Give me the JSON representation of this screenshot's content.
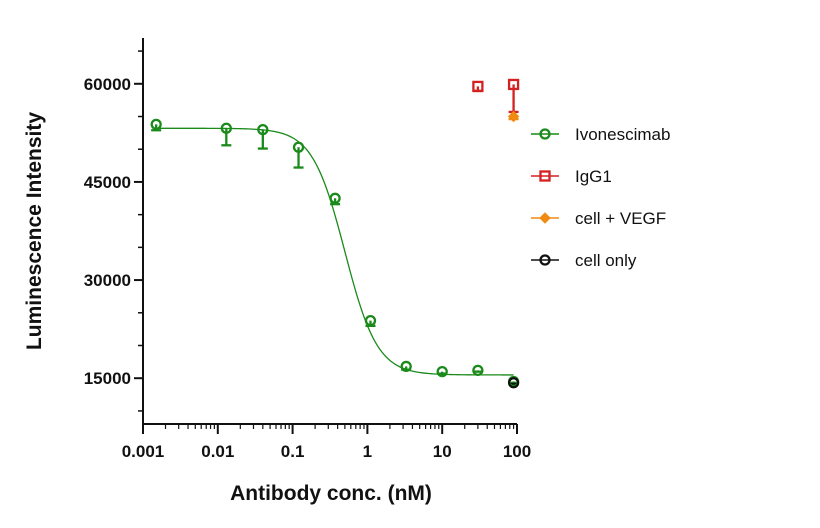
{
  "chart_data": {
    "type": "scatter",
    "title": "",
    "xlabel": "Antibody conc. (nM)",
    "ylabel": "Luminescence Intensity",
    "xscale": "log",
    "xlim": [
      0.001,
      100
    ],
    "ylim": [
      8000,
      67000
    ],
    "x_ticks": [
      0.001,
      0.01,
      0.1,
      1,
      10,
      100
    ],
    "x_tick_labels": [
      "0.001",
      "0.01",
      "0.1",
      "1",
      "10",
      "100"
    ],
    "y_ticks": [
      15000,
      30000,
      45000,
      60000
    ],
    "y_tick_labels": [
      "15000",
      "30000",
      "45000",
      "60000"
    ],
    "grid": false,
    "legend_position": "right",
    "series": [
      {
        "name": "Ivonescimab",
        "color": "#1a8a1a",
        "marker": "circle",
        "x": [
          0.0015,
          0.013,
          0.04,
          0.12,
          0.37,
          1.1,
          3.3,
          10,
          30,
          90
        ],
        "y": [
          53800,
          53200,
          53000,
          50300,
          42500,
          23800,
          16800,
          16000,
          16200,
          14500
        ],
        "error_low": [
          900,
          2600,
          2900,
          3100,
          900,
          800,
          500,
          300,
          200,
          200
        ],
        "fit": {
          "top": 53200,
          "bottom": 15500,
          "ec50": 0.5,
          "hill": 2.0
        }
      },
      {
        "name": "IgG1",
        "color": "#d42020",
        "marker": "square",
        "x": [
          30,
          90
        ],
        "y": [
          59600,
          59900
        ],
        "error_low": [
          700,
          4200
        ]
      },
      {
        "name": "cell + VEGF",
        "color": "#f08a10",
        "marker": "diamond",
        "x": [
          90
        ],
        "y": [
          55000
        ],
        "error_low": [
          400
        ]
      },
      {
        "name": "cell only",
        "color": "#111111",
        "marker": "circle",
        "x": [
          90
        ],
        "y": [
          14300
        ],
        "error_low": [
          200
        ]
      }
    ]
  }
}
